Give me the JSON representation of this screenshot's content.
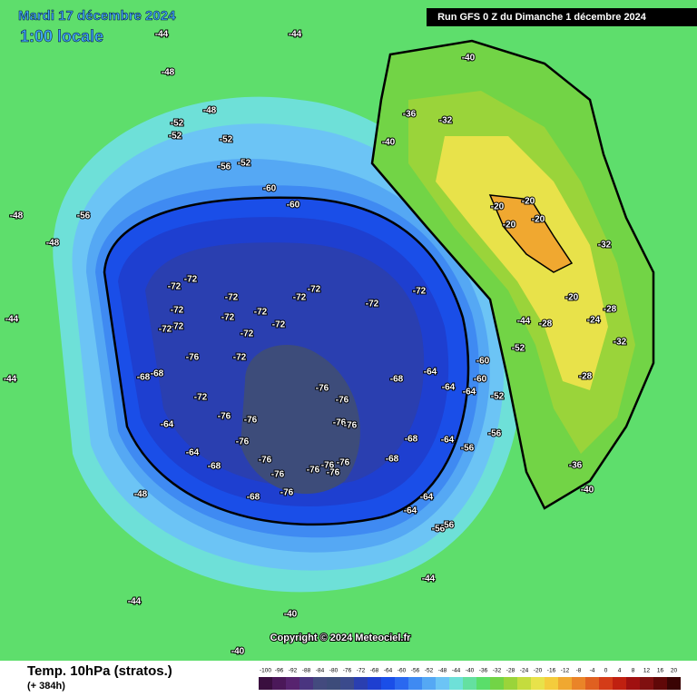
{
  "header": {
    "date": "Mardi 17 décembre 2024",
    "time": "1:00 locale",
    "run": "Run GFS 0 Z du Dimanche 1 décembre 2024"
  },
  "footer": {
    "title": "Temp. 10hPa (stratos.)",
    "lead": "(+ 384h)",
    "copyright": "Copyright © 2024 Meteociel.fr"
  },
  "legend": {
    "ticks": [
      -100,
      -96,
      -92,
      -88,
      -84,
      -80,
      -76,
      -72,
      -68,
      -64,
      -60,
      -56,
      -52,
      -48,
      -44,
      -40,
      -36,
      -32,
      -28,
      -24,
      -20,
      -16,
      -12,
      -8,
      -4,
      0,
      4,
      8,
      12,
      16,
      20
    ],
    "colors": [
      "#3a0f3f",
      "#4b1859",
      "#57236f",
      "#4a3580",
      "#434a7e",
      "#3d4c7a",
      "#3b4a8c",
      "#2a3fb0",
      "#1e3fd0",
      "#1a4ee8",
      "#2a68f0",
      "#3f8af2",
      "#55a8f4",
      "#6cc4f5",
      "#6ee0d8",
      "#64e0a0",
      "#5ade6a",
      "#72d446",
      "#9ad43a",
      "#c4dc3e",
      "#e8e24a",
      "#f4cc3c",
      "#f0a830",
      "#ea8428",
      "#e06020",
      "#d43c18",
      "#c02010",
      "#a01010",
      "#801010",
      "#600808",
      "#3a0404"
    ]
  },
  "map": {
    "labels": [
      -72,
      -72,
      -72,
      -72,
      -72,
      -72,
      -72,
      -72,
      -72,
      -72,
      -72,
      -72,
      -72,
      -72,
      -72,
      -72,
      -76,
      -76,
      -76,
      -76,
      -76,
      -76,
      -76,
      -76,
      -76,
      -76,
      -76,
      -76,
      -76,
      -76,
      -76,
      -68,
      -68,
      -68,
      -68,
      -68,
      -68,
      -68,
      -64,
      -64,
      -64,
      -64,
      -64,
      -64,
      -64,
      -64,
      -60,
      -60,
      -60,
      -60,
      -56,
      -56,
      -56,
      -56,
      -56,
      -56,
      -52,
      -52,
      -52,
      -52,
      -52,
      -52,
      -48,
      -48,
      -48,
      -48,
      -48,
      -44,
      -44,
      -44,
      -44,
      -44,
      -44,
      -44,
      -40,
      -40,
      -40,
      -40,
      -40,
      -36,
      -36,
      -32,
      -32,
      -32,
      -28,
      -28,
      -28,
      -24,
      -20,
      -20,
      -20,
      -20,
      -20
    ]
  }
}
